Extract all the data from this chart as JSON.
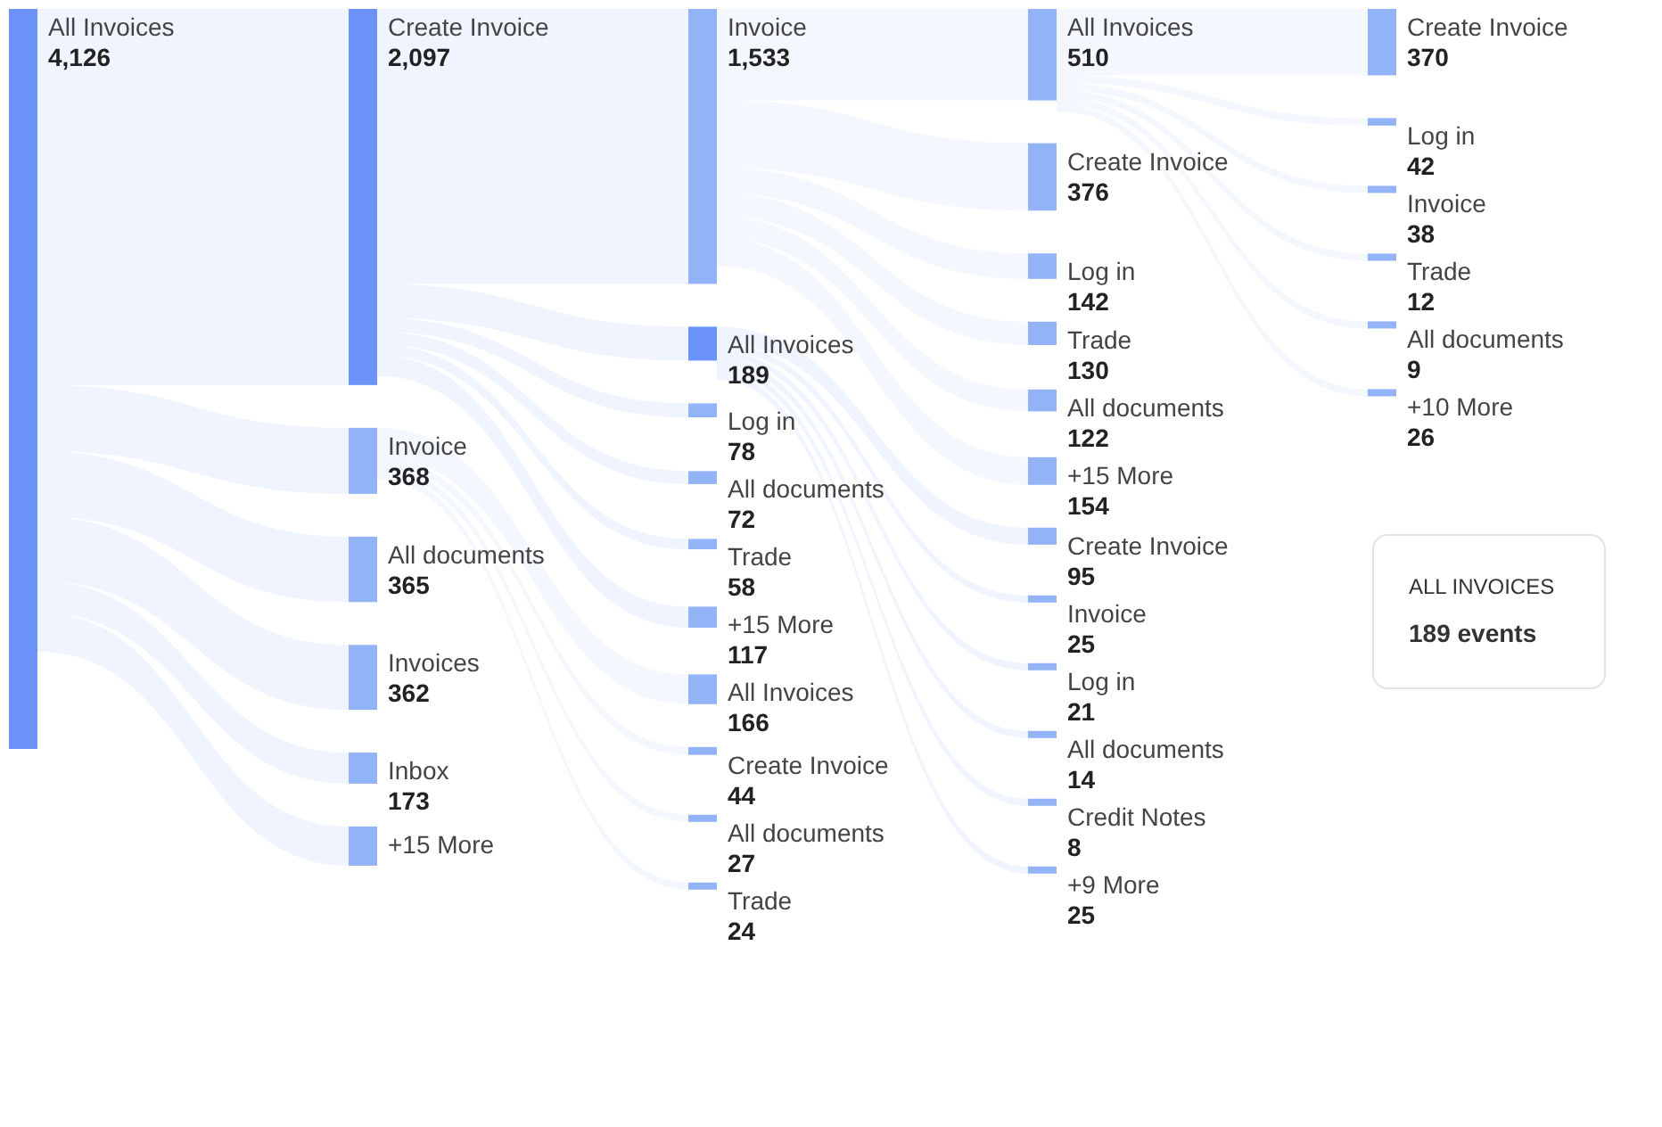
{
  "chart_data": {
    "type": "other",
    "annotations": [
      "ALL INVOICES",
      "189 events"
    ],
    "categories": [
      "All Invoices",
      "Create Invoice",
      "Invoice",
      "All documents",
      "Invoices",
      "Inbox",
      "+15 More",
      "Invoice",
      "All Invoices",
      "Log in",
      "All documents",
      "Trade",
      "+15 More",
      "All Invoices",
      "Create Invoice",
      "All documents",
      "Trade",
      "All Invoices",
      "Create Invoice",
      "Log in",
      "Trade",
      "All documents",
      "+15 More",
      "Create Invoice",
      "Invoice",
      "Log in",
      "All documents",
      "Credit Notes",
      "+9 More",
      "Create Invoice",
      "Log in",
      "Invoice",
      "Trade",
      "All documents",
      "+10 More"
    ],
    "values": [
      4126,
      2097,
      368,
      365,
      362,
      173,
      null,
      1533,
      189,
      78,
      72,
      58,
      117,
      166,
      44,
      27,
      24,
      510,
      376,
      142,
      130,
      122,
      154,
      95,
      25,
      21,
      14,
      8,
      25,
      370,
      42,
      38,
      12,
      9,
      26
    ],
    "value_labels": [
      "4,126",
      "2,097",
      "368",
      "365",
      "362",
      "173",
      null,
      "1,533",
      "189",
      "78",
      "72",
      "58",
      "117",
      "166",
      "44",
      "27",
      "24",
      "510",
      "376",
      "142",
      "130",
      "122",
      "154",
      "95",
      "25",
      "21",
      "14",
      "8",
      "25",
      "370",
      "42",
      "38",
      "12",
      "9",
      "26"
    ],
    "colors": [
      "#6b93f7",
      "#6b93f7",
      "#93b3f7",
      "#93b3f7",
      "#93b3f7",
      "#93b3f7",
      "#93b3f7",
      "#93b3f7",
      "#6b93f7",
      "#93b3f7",
      "#93b3f7",
      "#93b3f7",
      "#93b3f7",
      "#93b3f7",
      "#93b3f7",
      "#93b3f7",
      "#93b3f7",
      "#93b3f7",
      "#93b3f7",
      "#93b3f7",
      "#93b3f7",
      "#93b3f7",
      "#93b3f7",
      "#93b3f7",
      "#93b3f7",
      "#93b3f7",
      "#93b3f7",
      "#93b3f7",
      "#93b3f7",
      "#93b3f7",
      "#93b3f7",
      "#93b3f7",
      "#93b3f7",
      "#93b3f7",
      "#93b3f7"
    ]
  }
}
